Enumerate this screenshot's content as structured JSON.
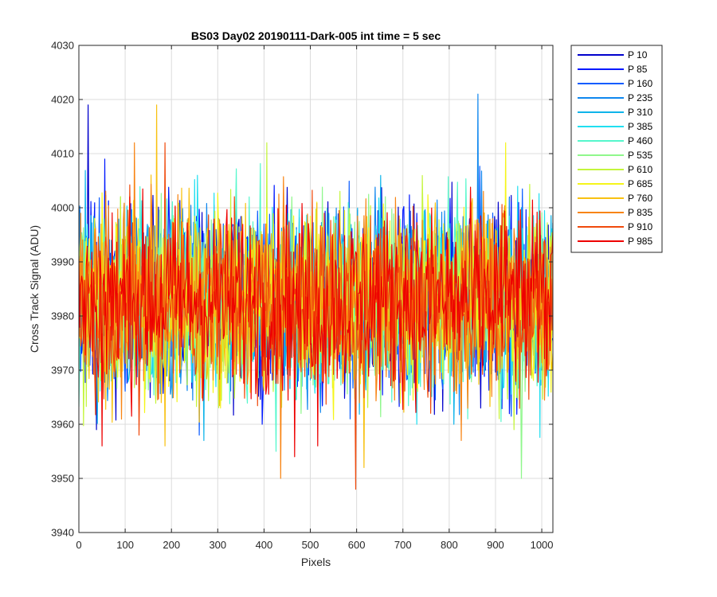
{
  "chart_data": {
    "type": "line",
    "title": "BS03 Day02 20190111-Dark-005 int time = 5 sec",
    "xlabel": "Pixels",
    "ylabel": "Cross Track Signal (ADU)",
    "xlim": [
      0,
      1024
    ],
    "ylim": [
      3940,
      4030
    ],
    "xticks": [
      0,
      100,
      200,
      300,
      400,
      500,
      600,
      700,
      800,
      900,
      1000
    ],
    "yticks": [
      3940,
      3950,
      3960,
      3970,
      3980,
      3990,
      4000,
      4010,
      4020,
      4030
    ],
    "grid": true,
    "legend_position": "outside-top-right",
    "noise": {
      "mean": 3983,
      "typical_range": [
        3963,
        4003
      ]
    },
    "series": [
      {
        "name": "P 10",
        "color": "#0000cc",
        "peaks": [
          [
            20,
            4019
          ],
          [
            38,
            3959
          ],
          [
            868,
            3963
          ]
        ]
      },
      {
        "name": "P 85",
        "color": "#0018ff",
        "peaks": [
          [
            55,
            4009
          ],
          [
            395,
            3960
          ]
        ]
      },
      {
        "name": "P 160",
        "color": "#0a5cff",
        "peaks": [
          [
            260,
            3958
          ],
          [
            585,
            3961
          ]
        ]
      },
      {
        "name": "P 235",
        "color": "#0f87ef",
        "peaks": [
          [
            862,
            4021
          ],
          [
            598,
            3958
          ]
        ]
      },
      {
        "name": "P 310",
        "color": "#0fb4ea",
        "peaks": [
          [
            270,
            3957
          ],
          [
            810,
            3960
          ]
        ]
      },
      {
        "name": "P 385",
        "color": "#21dff0",
        "peaks": [
          [
            255,
            4006
          ],
          [
            730,
            3960
          ]
        ]
      },
      {
        "name": "P 460",
        "color": "#55f7cc",
        "peaks": [
          [
            425,
            3955
          ],
          [
            840,
            3961
          ]
        ]
      },
      {
        "name": "P 535",
        "color": "#8ff78c",
        "peaks": [
          [
            955,
            3950
          ],
          [
            480,
            3962
          ]
        ]
      },
      {
        "name": "P 610",
        "color": "#c4f53c",
        "peaks": [
          [
            405,
            4012
          ],
          [
            940,
            3959
          ]
        ]
      },
      {
        "name": "P 685",
        "color": "#f5f51a",
        "peaks": [
          [
            922,
            4012
          ],
          [
            305,
            3963
          ]
        ]
      },
      {
        "name": "P 760",
        "color": "#f8c111",
        "peaks": [
          [
            168,
            4019
          ],
          [
            185,
            3956
          ],
          [
            615,
            3952
          ]
        ]
      },
      {
        "name": "P 835",
        "color": "#f88413",
        "peaks": [
          [
            120,
            4012
          ],
          [
            435,
            3950
          ],
          [
            825,
            3957
          ]
        ]
      },
      {
        "name": "P 910",
        "color": "#f04a0c",
        "peaks": [
          [
            185,
            4012
          ],
          [
            597,
            3948
          ],
          [
            130,
            3958
          ]
        ]
      },
      {
        "name": "P 985",
        "color": "#ee0000",
        "peaks": [
          [
            50,
            3956
          ],
          [
            465,
            3954
          ],
          [
            515,
            3956
          ]
        ]
      }
    ]
  }
}
